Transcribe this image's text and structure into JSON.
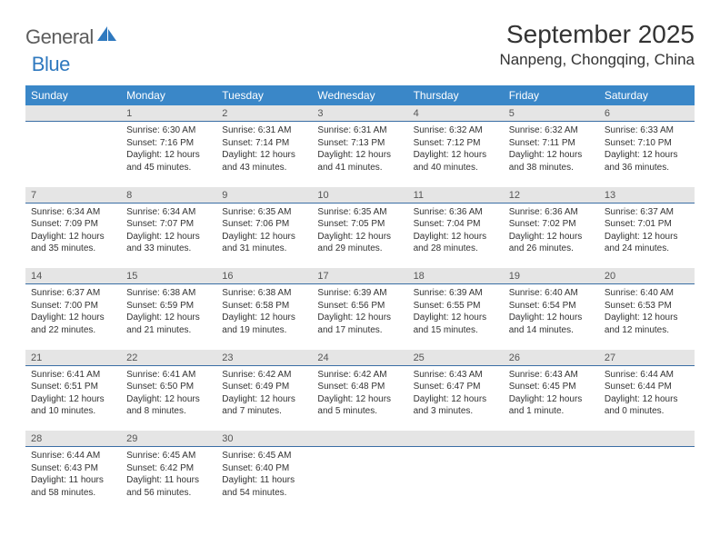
{
  "brand": {
    "part1": "General",
    "part2": "Blue"
  },
  "title": "September 2025",
  "location": "Nanpeng, Chongqing, China",
  "colors": {
    "header_bg": "#3a87c8",
    "header_text": "#ffffff",
    "daynum_bg": "#e5e5e5",
    "daynum_border": "#3a6ea5",
    "body_text": "#333333",
    "logo_gray": "#5c5c5c",
    "logo_blue": "#2f79bf",
    "page_bg": "#ffffff"
  },
  "typography": {
    "month_title_pt": 28,
    "location_pt": 17,
    "dow_pt": 12,
    "daynum_pt": 11,
    "cell_pt": 10
  },
  "days_of_week": [
    "Sunday",
    "Monday",
    "Tuesday",
    "Wednesday",
    "Thursday",
    "Friday",
    "Saturday"
  ],
  "weeks": [
    [
      null,
      {
        "n": "1",
        "sr": "6:30 AM",
        "ss": "7:16 PM",
        "dy": "12 hours and 45 minutes."
      },
      {
        "n": "2",
        "sr": "6:31 AM",
        "ss": "7:14 PM",
        "dy": "12 hours and 43 minutes."
      },
      {
        "n": "3",
        "sr": "6:31 AM",
        "ss": "7:13 PM",
        "dy": "12 hours and 41 minutes."
      },
      {
        "n": "4",
        "sr": "6:32 AM",
        "ss": "7:12 PM",
        "dy": "12 hours and 40 minutes."
      },
      {
        "n": "5",
        "sr": "6:32 AM",
        "ss": "7:11 PM",
        "dy": "12 hours and 38 minutes."
      },
      {
        "n": "6",
        "sr": "6:33 AM",
        "ss": "7:10 PM",
        "dy": "12 hours and 36 minutes."
      }
    ],
    [
      {
        "n": "7",
        "sr": "6:34 AM",
        "ss": "7:09 PM",
        "dy": "12 hours and 35 minutes."
      },
      {
        "n": "8",
        "sr": "6:34 AM",
        "ss": "7:07 PM",
        "dy": "12 hours and 33 minutes."
      },
      {
        "n": "9",
        "sr": "6:35 AM",
        "ss": "7:06 PM",
        "dy": "12 hours and 31 minutes."
      },
      {
        "n": "10",
        "sr": "6:35 AM",
        "ss": "7:05 PM",
        "dy": "12 hours and 29 minutes."
      },
      {
        "n": "11",
        "sr": "6:36 AM",
        "ss": "7:04 PM",
        "dy": "12 hours and 28 minutes."
      },
      {
        "n": "12",
        "sr": "6:36 AM",
        "ss": "7:02 PM",
        "dy": "12 hours and 26 minutes."
      },
      {
        "n": "13",
        "sr": "6:37 AM",
        "ss": "7:01 PM",
        "dy": "12 hours and 24 minutes."
      }
    ],
    [
      {
        "n": "14",
        "sr": "6:37 AM",
        "ss": "7:00 PM",
        "dy": "12 hours and 22 minutes."
      },
      {
        "n": "15",
        "sr": "6:38 AM",
        "ss": "6:59 PM",
        "dy": "12 hours and 21 minutes."
      },
      {
        "n": "16",
        "sr": "6:38 AM",
        "ss": "6:58 PM",
        "dy": "12 hours and 19 minutes."
      },
      {
        "n": "17",
        "sr": "6:39 AM",
        "ss": "6:56 PM",
        "dy": "12 hours and 17 minutes."
      },
      {
        "n": "18",
        "sr": "6:39 AM",
        "ss": "6:55 PM",
        "dy": "12 hours and 15 minutes."
      },
      {
        "n": "19",
        "sr": "6:40 AM",
        "ss": "6:54 PM",
        "dy": "12 hours and 14 minutes."
      },
      {
        "n": "20",
        "sr": "6:40 AM",
        "ss": "6:53 PM",
        "dy": "12 hours and 12 minutes."
      }
    ],
    [
      {
        "n": "21",
        "sr": "6:41 AM",
        "ss": "6:51 PM",
        "dy": "12 hours and 10 minutes."
      },
      {
        "n": "22",
        "sr": "6:41 AM",
        "ss": "6:50 PM",
        "dy": "12 hours and 8 minutes."
      },
      {
        "n": "23",
        "sr": "6:42 AM",
        "ss": "6:49 PM",
        "dy": "12 hours and 7 minutes."
      },
      {
        "n": "24",
        "sr": "6:42 AM",
        "ss": "6:48 PM",
        "dy": "12 hours and 5 minutes."
      },
      {
        "n": "25",
        "sr": "6:43 AM",
        "ss": "6:47 PM",
        "dy": "12 hours and 3 minutes."
      },
      {
        "n": "26",
        "sr": "6:43 AM",
        "ss": "6:45 PM",
        "dy": "12 hours and 1 minute."
      },
      {
        "n": "27",
        "sr": "6:44 AM",
        "ss": "6:44 PM",
        "dy": "12 hours and 0 minutes."
      }
    ],
    [
      {
        "n": "28",
        "sr": "6:44 AM",
        "ss": "6:43 PM",
        "dy": "11 hours and 58 minutes."
      },
      {
        "n": "29",
        "sr": "6:45 AM",
        "ss": "6:42 PM",
        "dy": "11 hours and 56 minutes."
      },
      {
        "n": "30",
        "sr": "6:45 AM",
        "ss": "6:40 PM",
        "dy": "11 hours and 54 minutes."
      },
      null,
      null,
      null,
      null
    ]
  ],
  "labels": {
    "sunrise": "Sunrise:",
    "sunset": "Sunset:",
    "daylight": "Daylight:"
  }
}
